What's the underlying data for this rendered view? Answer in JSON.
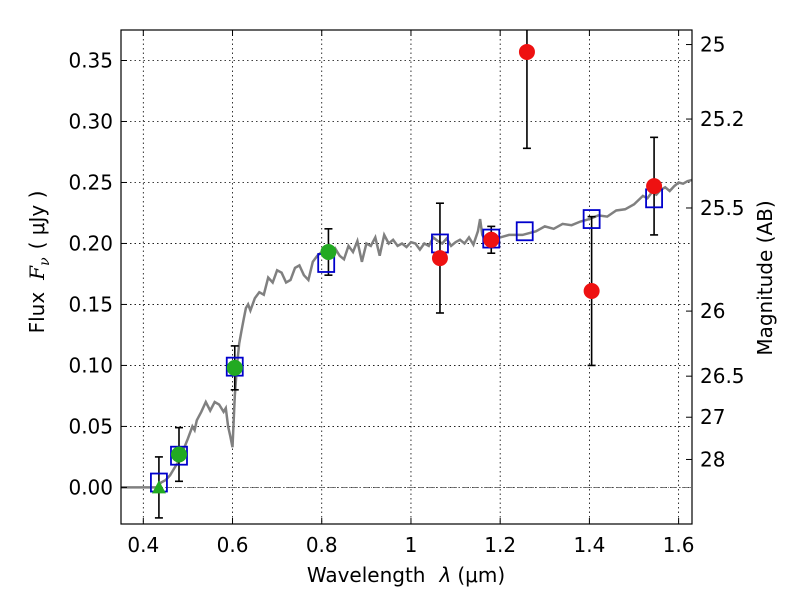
{
  "chart_data": {
    "type": "scatter",
    "xlabel": "Wavelength",
    "xlabel_symbol": "λ",
    "xlabel_unit": "(μm)",
    "ylabel": "Flux",
    "ylabel_symbol": "F",
    "ylabel_sub": "ν",
    "ylabel_unit": "( μJy )",
    "y2label": "Magnitude (AB)",
    "xlim": [
      0.35,
      1.63
    ],
    "ylim": [
      -0.03,
      0.375
    ],
    "grid": true,
    "x_ticks": [
      {
        "value": 0.4,
        "label": "0.4"
      },
      {
        "value": 0.6,
        "label": "0.6"
      },
      {
        "value": 0.8,
        "label": "0.8"
      },
      {
        "value": 1.0,
        "label": "1"
      },
      {
        "value": 1.2,
        "label": "1.2"
      },
      {
        "value": 1.4,
        "label": "1.4"
      },
      {
        "value": 1.6,
        "label": "1.6"
      }
    ],
    "y_ticks": [
      {
        "value": 0.0,
        "label": "0.00"
      },
      {
        "value": 0.05,
        "label": "0.05"
      },
      {
        "value": 0.1,
        "label": "0.10"
      },
      {
        "value": 0.15,
        "label": "0.15"
      },
      {
        "value": 0.2,
        "label": "0.20"
      },
      {
        "value": 0.25,
        "label": "0.25"
      },
      {
        "value": 0.3,
        "label": "0.30"
      },
      {
        "value": 0.35,
        "label": "0.35"
      }
    ],
    "mag_ticks": [
      {
        "value": 25,
        "label": "25"
      },
      {
        "value": 25.2,
        "label": "25.2"
      },
      {
        "value": 25.5,
        "label": "25.5"
      },
      {
        "value": 26,
        "label": "26"
      },
      {
        "value": 26.5,
        "label": "26.5"
      },
      {
        "value": 27,
        "label": "27"
      },
      {
        "value": 28,
        "label": "28"
      }
    ],
    "mag_zeropoint": 23.9,
    "series": [
      {
        "name": "template_spectrum",
        "kind": "line",
        "color": "#808080",
        "points": [
          [
            0.35,
            0.0
          ],
          [
            0.43,
            0.0
          ],
          [
            0.44,
            0.004
          ],
          [
            0.45,
            0.006
          ],
          [
            0.46,
            0.01
          ],
          [
            0.47,
            0.016
          ],
          [
            0.48,
            0.022
          ],
          [
            0.49,
            0.031
          ],
          [
            0.5,
            0.04
          ],
          [
            0.51,
            0.05
          ],
          [
            0.515,
            0.047
          ],
          [
            0.52,
            0.055
          ],
          [
            0.53,
            0.062
          ],
          [
            0.54,
            0.07
          ],
          [
            0.55,
            0.063
          ],
          [
            0.56,
            0.07
          ],
          [
            0.57,
            0.068
          ],
          [
            0.58,
            0.062
          ],
          [
            0.585,
            0.065
          ],
          [
            0.59,
            0.05
          ],
          [
            0.595,
            0.042
          ],
          [
            0.6,
            0.033
          ],
          [
            0.605,
            0.075
          ],
          [
            0.61,
            0.1
          ],
          [
            0.615,
            0.118
          ],
          [
            0.62,
            0.128
          ],
          [
            0.625,
            0.138
          ],
          [
            0.63,
            0.147
          ],
          [
            0.635,
            0.15
          ],
          [
            0.64,
            0.145
          ],
          [
            0.65,
            0.155
          ],
          [
            0.66,
            0.16
          ],
          [
            0.67,
            0.158
          ],
          [
            0.68,
            0.172
          ],
          [
            0.69,
            0.168
          ],
          [
            0.7,
            0.178
          ],
          [
            0.71,
            0.176
          ],
          [
            0.72,
            0.168
          ],
          [
            0.73,
            0.17
          ],
          [
            0.74,
            0.18
          ],
          [
            0.75,
            0.182
          ],
          [
            0.76,
            0.174
          ],
          [
            0.77,
            0.17
          ],
          [
            0.78,
            0.185
          ],
          [
            0.79,
            0.19
          ],
          [
            0.8,
            0.193
          ],
          [
            0.81,
            0.188
          ],
          [
            0.82,
            0.192
          ],
          [
            0.83,
            0.196
          ],
          [
            0.84,
            0.19
          ],
          [
            0.85,
            0.187
          ],
          [
            0.86,
            0.198
          ],
          [
            0.87,
            0.193
          ],
          [
            0.88,
            0.202
          ],
          [
            0.89,
            0.185
          ],
          [
            0.9,
            0.2
          ],
          [
            0.91,
            0.198
          ],
          [
            0.92,
            0.205
          ],
          [
            0.93,
            0.19
          ],
          [
            0.94,
            0.207
          ],
          [
            0.95,
            0.2
          ],
          [
            0.96,
            0.203
          ],
          [
            0.97,
            0.198
          ],
          [
            0.98,
            0.2
          ],
          [
            0.99,
            0.197
          ],
          [
            1.0,
            0.201
          ],
          [
            1.01,
            0.2
          ],
          [
            1.02,
            0.195
          ],
          [
            1.03,
            0.2
          ],
          [
            1.04,
            0.198
          ],
          [
            1.05,
            0.205
          ],
          [
            1.06,
            0.202
          ],
          [
            1.07,
            0.2
          ],
          [
            1.08,
            0.204
          ],
          [
            1.09,
            0.198
          ],
          [
            1.1,
            0.201
          ],
          [
            1.11,
            0.203
          ],
          [
            1.12,
            0.2
          ],
          [
            1.13,
            0.205
          ],
          [
            1.14,
            0.199
          ],
          [
            1.15,
            0.21
          ],
          [
            1.155,
            0.22
          ],
          [
            1.16,
            0.207
          ],
          [
            1.17,
            0.2
          ],
          [
            1.18,
            0.204
          ],
          [
            1.2,
            0.205
          ],
          [
            1.22,
            0.207
          ],
          [
            1.25,
            0.207
          ],
          [
            1.28,
            0.21
          ],
          [
            1.3,
            0.214
          ],
          [
            1.32,
            0.212
          ],
          [
            1.34,
            0.216
          ],
          [
            1.36,
            0.215
          ],
          [
            1.38,
            0.218
          ],
          [
            1.4,
            0.22
          ],
          [
            1.42,
            0.223
          ],
          [
            1.44,
            0.222
          ],
          [
            1.46,
            0.227
          ],
          [
            1.48,
            0.228
          ],
          [
            1.5,
            0.232
          ],
          [
            1.52,
            0.239
          ],
          [
            1.53,
            0.237
          ],
          [
            1.54,
            0.242
          ],
          [
            1.55,
            0.24
          ],
          [
            1.56,
            0.244
          ],
          [
            1.57,
            0.246
          ],
          [
            1.58,
            0.243
          ],
          [
            1.59,
            0.247
          ],
          [
            1.6,
            0.25
          ],
          [
            1.61,
            0.249
          ],
          [
            1.62,
            0.251
          ],
          [
            1.63,
            0.252
          ]
        ]
      },
      {
        "name": "model_photometry",
        "kind": "square",
        "color": "#0000cc",
        "points": [
          [
            0.435,
            0.004
          ],
          [
            0.48,
            0.026
          ],
          [
            0.605,
            0.099
          ],
          [
            0.81,
            0.184
          ],
          [
            1.065,
            0.2
          ],
          [
            1.18,
            0.204
          ],
          [
            1.255,
            0.21
          ],
          [
            1.405,
            0.22
          ],
          [
            1.545,
            0.237
          ]
        ]
      },
      {
        "name": "observed_optical",
        "kind": "circle",
        "color": "#22aa22",
        "points": [
          {
            "x": 0.48,
            "y": 0.027,
            "err": 0.022
          },
          {
            "x": 0.605,
            "y": 0.098,
            "err": 0.018
          },
          {
            "x": 0.815,
            "y": 0.193,
            "err": 0.019
          }
        ]
      },
      {
        "name": "observed_upper_limit",
        "kind": "triangle",
        "color": "#22aa22",
        "points": [
          {
            "x": 0.435,
            "y": 0.0,
            "err": 0.025
          }
        ]
      },
      {
        "name": "observed_nir",
        "kind": "circle",
        "color": "#ee1111",
        "points": [
          {
            "x": 1.065,
            "y": 0.188,
            "err": 0.045
          },
          {
            "x": 1.18,
            "y": 0.203,
            "err": 0.011
          },
          {
            "x": 1.26,
            "y": 0.357,
            "err": 0.079
          },
          {
            "x": 1.405,
            "y": 0.161,
            "err": 0.061
          },
          {
            "x": 1.545,
            "y": 0.247,
            "err": 0.04
          }
        ]
      }
    ]
  }
}
